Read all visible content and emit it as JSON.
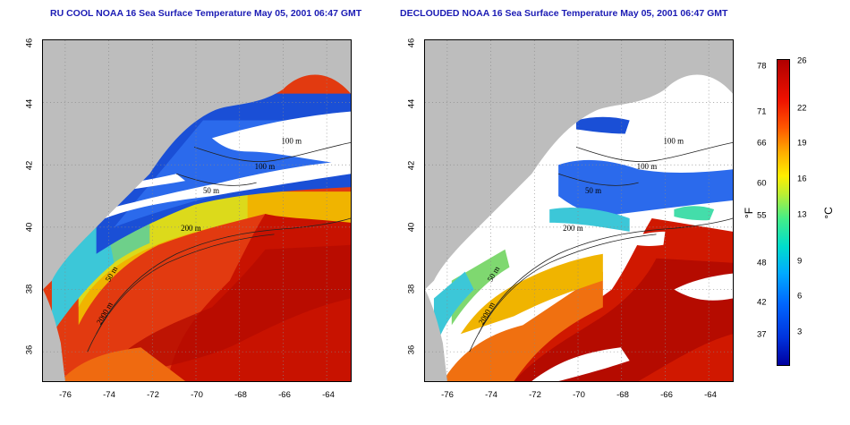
{
  "left_panel": {
    "title": "RU COOL NOAA 16 Sea Surface Temperature May 05, 2001 06:47 GMT",
    "contours": [
      "100 m",
      "100 m",
      "50 m",
      "200 m",
      "50 m",
      "2000 m"
    ]
  },
  "right_panel": {
    "title": "DECLOUDED NOAA 16 Sea Surface Temperature May 05, 2001 06:47 GMT",
    "contours": [
      "100 m",
      "100 m",
      "50 m",
      "200 m",
      "50 m",
      "2000 m"
    ]
  },
  "axes": {
    "lat_ticks": [
      "46",
      "44",
      "42",
      "40",
      "38",
      "36"
    ],
    "lon_ticks": [
      "-76",
      "-74",
      "-72",
      "-70",
      "-68",
      "-66",
      "-64"
    ]
  },
  "colorbar": {
    "fahrenheit_unit": "°F",
    "celsius_unit": "°C",
    "fahrenheit_ticks": [
      "78",
      "71",
      "66",
      "60",
      "55",
      "48",
      "42",
      "37"
    ],
    "celsius_ticks": [
      "26",
      "22",
      "19",
      "16",
      "13",
      "9",
      "6",
      "3"
    ],
    "range_celsius": [
      0,
      26
    ]
  },
  "colors": {
    "title": "#1b1bb4",
    "land": "#bdbdbd",
    "cloud": "#ffffff",
    "warm": "#c80000",
    "cool": "#1a4fd6"
  }
}
